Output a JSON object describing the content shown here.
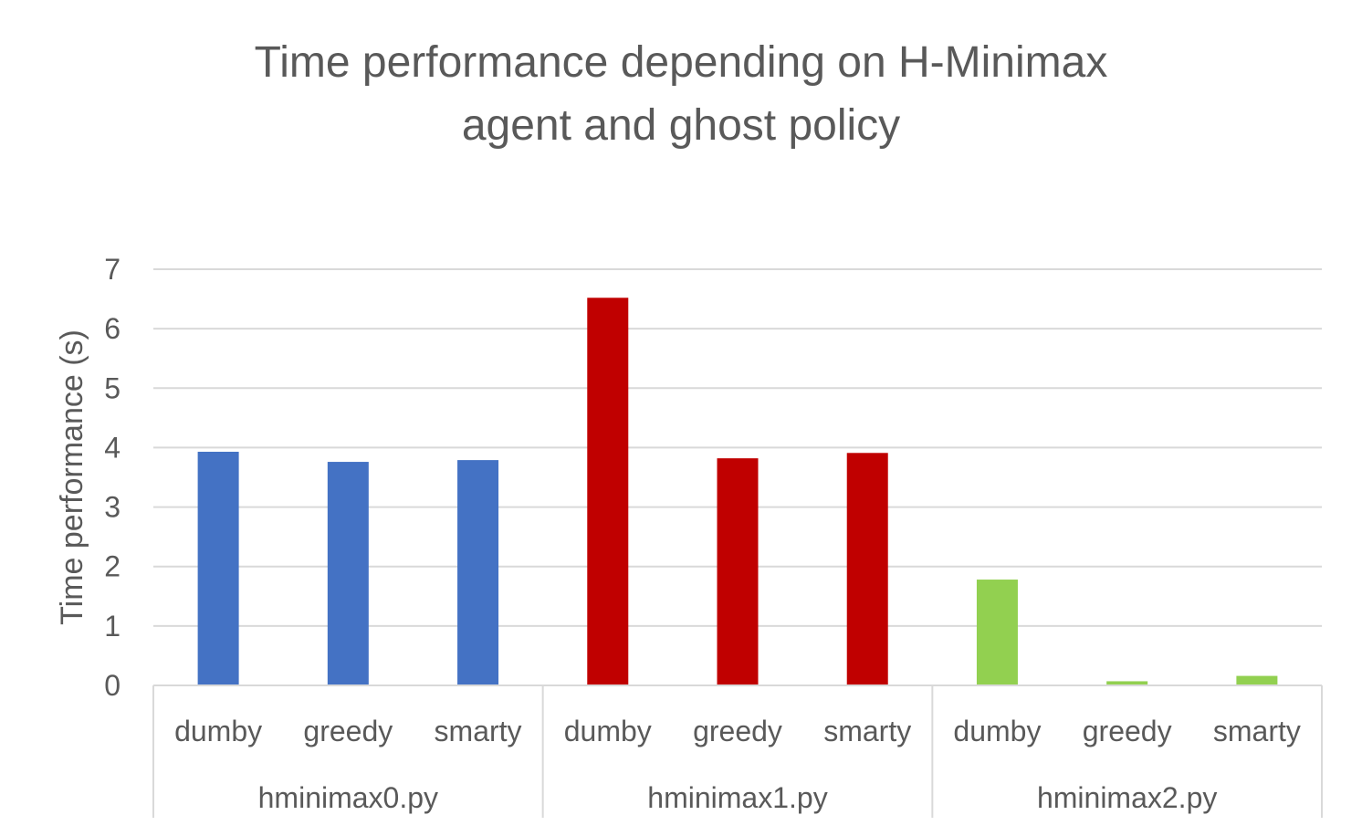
{
  "chart_data": {
    "type": "bar",
    "title": "Time performance depending on H-Minimax agent and ghost policy",
    "title_lines": [
      "Time performance depending on H-Minimax",
      "agent and ghost policy"
    ],
    "ylabel": "Time performance (s)",
    "xlabel": "",
    "ylim": [
      0,
      7
    ],
    "yticks": [
      "0",
      "1",
      "2",
      "3",
      "4",
      "5",
      "6",
      "7"
    ],
    "grid": true,
    "legend": "none",
    "groups": [
      {
        "name": "hminimax0.py",
        "color": "#4472C4",
        "categories": [
          "dumby",
          "greedy",
          "smarty"
        ],
        "values": [
          3.93,
          3.76,
          3.79
        ]
      },
      {
        "name": "hminimax1.py",
        "color": "#C00000",
        "categories": [
          "dumby",
          "greedy",
          "smarty"
        ],
        "values": [
          6.52,
          3.82,
          3.91
        ]
      },
      {
        "name": "hminimax2.py",
        "color": "#92D050",
        "categories": [
          "dumby",
          "greedy",
          "smarty"
        ],
        "values": [
          1.78,
          0.07,
          0.16
        ]
      }
    ]
  }
}
